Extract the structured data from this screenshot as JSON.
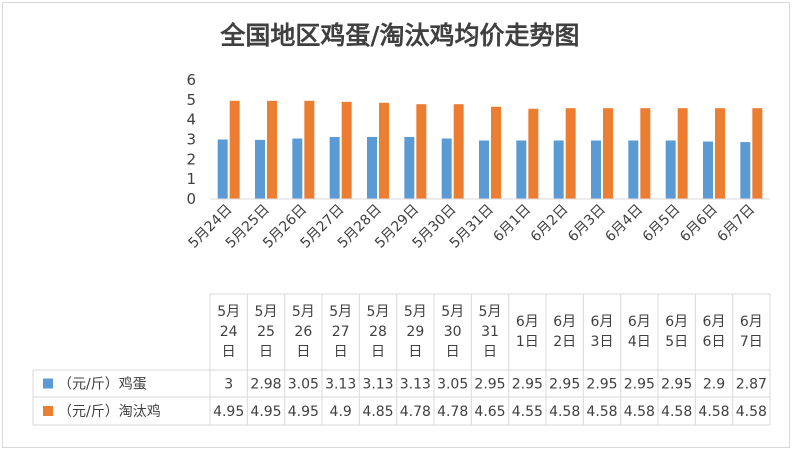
{
  "chart_data": {
    "type": "bar",
    "title": "全国地区鸡蛋/淘汰鸡均价走势图",
    "categories": [
      "5月24日",
      "5月25日",
      "5月26日",
      "5月27日",
      "5月28日",
      "5月29日",
      "5月30日",
      "5月31日",
      "6月1日",
      "6月2日",
      "6月3日",
      "6月4日",
      "6月5日",
      "6月6日",
      "6月7日"
    ],
    "series": [
      {
        "name": "（元/斤）鸡蛋",
        "color": "#5b9bd5",
        "values": [
          3,
          2.98,
          3.05,
          3.13,
          3.13,
          3.13,
          3.05,
          2.95,
          2.95,
          2.95,
          2.95,
          2.95,
          2.95,
          2.9,
          2.87
        ]
      },
      {
        "name": "（元/斤）淘汰鸡",
        "color": "#ed7d31",
        "values": [
          4.95,
          4.95,
          4.95,
          4.9,
          4.85,
          4.78,
          4.78,
          4.65,
          4.55,
          4.58,
          4.58,
          4.58,
          4.58,
          4.58,
          4.58
        ]
      }
    ],
    "table_values": [
      [
        "3",
        "2.98",
        "3.05",
        "3.13",
        "3.13",
        "3.13",
        "3.05",
        "2.95",
        "2.95",
        "2.95",
        "2.95",
        "2.95",
        "2.95",
        "2.9",
        "2.87"
      ],
      [
        "4.95",
        "4.95",
        "4.95",
        "4.9",
        "4.85",
        "4.78",
        "4.78",
        "4.65",
        "4.55",
        "4.58",
        "4.58",
        "4.58",
        "4.58",
        "4.58",
        "4.58"
      ]
    ],
    "table_headers": [
      [
        "5月",
        "24",
        "日"
      ],
      [
        "5月",
        "25",
        "日"
      ],
      [
        "5月",
        "26",
        "日"
      ],
      [
        "5月",
        "27",
        "日"
      ],
      [
        "5月",
        "28",
        "日"
      ],
      [
        "5月",
        "29",
        "日"
      ],
      [
        "5月",
        "30",
        "日"
      ],
      [
        "5月",
        "31",
        "日"
      ],
      [
        "6月",
        "1日"
      ],
      [
        "6月",
        "2日"
      ],
      [
        "6月",
        "3日"
      ],
      [
        "6月",
        "4日"
      ],
      [
        "6月",
        "5日"
      ],
      [
        "6月",
        "6日"
      ],
      [
        "6月",
        "7日"
      ]
    ],
    "ylim": [
      0,
      6
    ],
    "yticks": [
      0,
      1,
      2,
      3,
      4,
      5,
      6
    ],
    "grid": false,
    "legend": "data-table"
  }
}
